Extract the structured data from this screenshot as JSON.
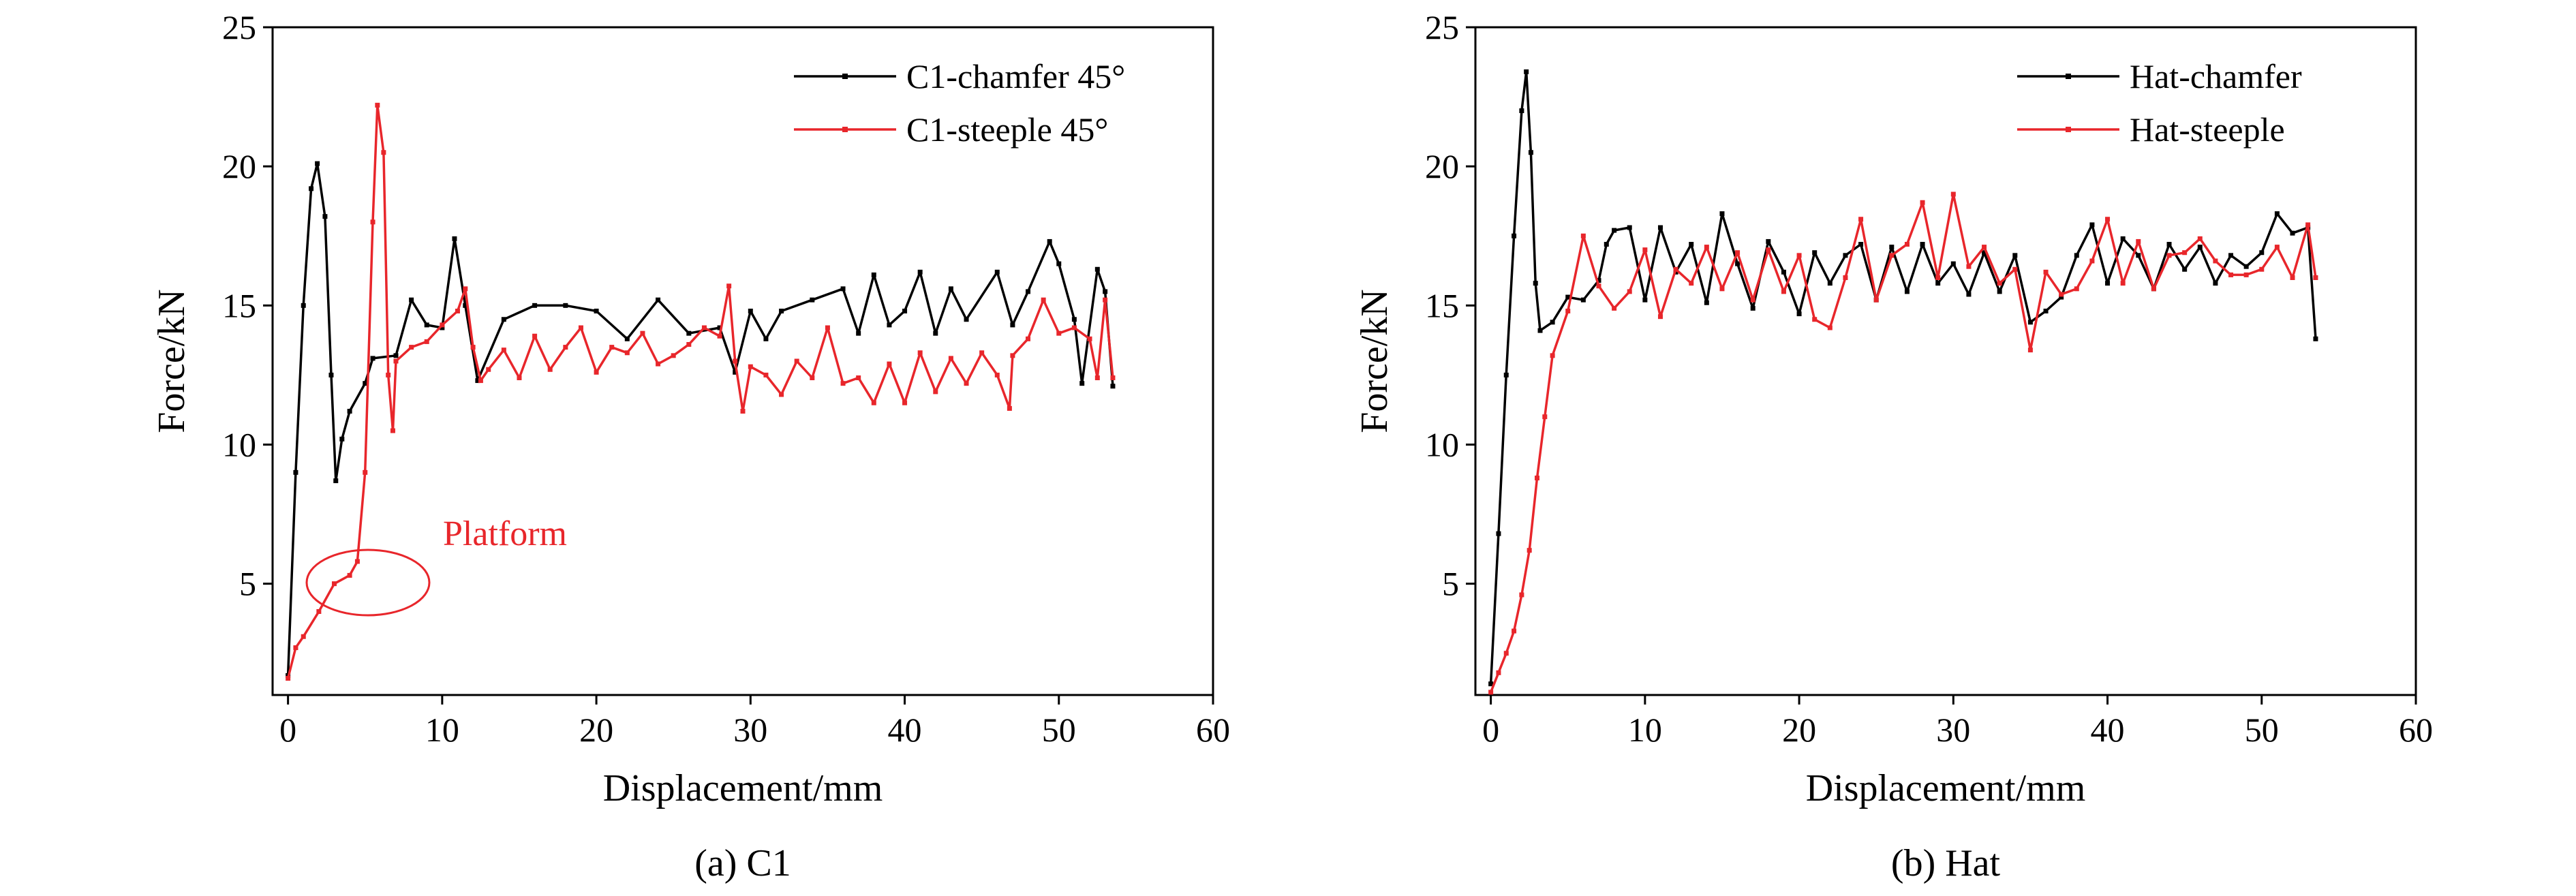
{
  "chart_data": [
    {
      "type": "line",
      "caption": "(a) C1",
      "xlabel": "Displacement/mm",
      "ylabel": "Force/kN",
      "xlim": [
        -1,
        60
      ],
      "ylim": [
        1,
        25
      ],
      "xticks": [
        0,
        10,
        20,
        30,
        40,
        50,
        60
      ],
      "yticks": [
        5,
        10,
        15,
        20,
        25
      ],
      "legend_position": "top-right",
      "annotations": [
        {
          "text": "Platform",
          "color": "#e8262b"
        }
      ],
      "series": [
        {
          "name": "C1-chamfer 45°",
          "color": "#000000",
          "points": [
            [
              0,
              1.7
            ],
            [
              0.5,
              9
            ],
            [
              1,
              15
            ],
            [
              1.5,
              19.2
            ],
            [
              1.9,
              20.1
            ],
            [
              2.4,
              18.2
            ],
            [
              2.8,
              12.5
            ],
            [
              3.1,
              8.7
            ],
            [
              3.5,
              10.2
            ],
            [
              4,
              11.2
            ],
            [
              5,
              12.2
            ],
            [
              5.5,
              13.1
            ],
            [
              7,
              13.2
            ],
            [
              8,
              15.2
            ],
            [
              9,
              14.3
            ],
            [
              10,
              14.2
            ],
            [
              10.8,
              17.4
            ],
            [
              11.5,
              15
            ],
            [
              12.3,
              12.3
            ],
            [
              14,
              14.5
            ],
            [
              16,
              15
            ],
            [
              18,
              15
            ],
            [
              20,
              14.8
            ],
            [
              22,
              13.8
            ],
            [
              24,
              15.2
            ],
            [
              26,
              14
            ],
            [
              28,
              14.2
            ],
            [
              29,
              12.6
            ],
            [
              30,
              14.8
            ],
            [
              31,
              13.8
            ],
            [
              32,
              14.8
            ],
            [
              34,
              15.2
            ],
            [
              36,
              15.6
            ],
            [
              37,
              14
            ],
            [
              38,
              16.1
            ],
            [
              39,
              14.3
            ],
            [
              40,
              14.8
            ],
            [
              41,
              16.2
            ],
            [
              42,
              14
            ],
            [
              43,
              15.6
            ],
            [
              44,
              14.5
            ],
            [
              46,
              16.2
            ],
            [
              47,
              14.3
            ],
            [
              48,
              15.5
            ],
            [
              49.4,
              17.3
            ],
            [
              50,
              16.5
            ],
            [
              51,
              14.5
            ],
            [
              51.5,
              12.2
            ],
            [
              52.5,
              16.3
            ],
            [
              53,
              15.5
            ],
            [
              53.5,
              12.1
            ]
          ]
        },
        {
          "name": "C1-steeple 45°",
          "color": "#e8262b",
          "points": [
            [
              0,
              1.6
            ],
            [
              0.5,
              2.7
            ],
            [
              1,
              3.1
            ],
            [
              2,
              4
            ],
            [
              3,
              5
            ],
            [
              4,
              5.3
            ],
            [
              4.5,
              5.8
            ],
            [
              5,
              9
            ],
            [
              5.5,
              18
            ],
            [
              5.8,
              22.2
            ],
            [
              6.2,
              20.5
            ],
            [
              6.5,
              12.5
            ],
            [
              6.8,
              10.5
            ],
            [
              7,
              13
            ],
            [
              8,
              13.5
            ],
            [
              9,
              13.7
            ],
            [
              10,
              14.3
            ],
            [
              11,
              14.8
            ],
            [
              11.5,
              15.6
            ],
            [
              12,
              13.5
            ],
            [
              12.5,
              12.3
            ],
            [
              13,
              12.7
            ],
            [
              14,
              13.4
            ],
            [
              15,
              12.4
            ],
            [
              16,
              13.9
            ],
            [
              17,
              12.7
            ],
            [
              18,
              13.5
            ],
            [
              19,
              14.2
            ],
            [
              20,
              12.6
            ],
            [
              21,
              13.5
            ],
            [
              22,
              13.3
            ],
            [
              23,
              14
            ],
            [
              24,
              12.9
            ],
            [
              25,
              13.2
            ],
            [
              26,
              13.6
            ],
            [
              27,
              14.2
            ],
            [
              28,
              13.9
            ],
            [
              28.6,
              15.7
            ],
            [
              29,
              13
            ],
            [
              29.5,
              11.2
            ],
            [
              30,
              12.8
            ],
            [
              31,
              12.5
            ],
            [
              32,
              11.8
            ],
            [
              33,
              13
            ],
            [
              34,
              12.4
            ],
            [
              35,
              14.2
            ],
            [
              36,
              12.2
            ],
            [
              37,
              12.4
            ],
            [
              38,
              11.5
            ],
            [
              39,
              12.9
            ],
            [
              40,
              11.5
            ],
            [
              41,
              13.3
            ],
            [
              42,
              11.9
            ],
            [
              43,
              13.1
            ],
            [
              44,
              12.2
            ],
            [
              45,
              13.3
            ],
            [
              46,
              12.5
            ],
            [
              46.8,
              11.3
            ],
            [
              47,
              13.2
            ],
            [
              48,
              13.8
            ],
            [
              49,
              15.2
            ],
            [
              50,
              14
            ],
            [
              51,
              14.2
            ],
            [
              52,
              13.8
            ],
            [
              52.5,
              12.4
            ],
            [
              53,
              15.2
            ],
            [
              53.5,
              12.4
            ]
          ]
        }
      ]
    },
    {
      "type": "line",
      "caption": "(b) Hat",
      "xlabel": "Displacement/mm",
      "ylabel": "Force/kN",
      "xlim": [
        -1,
        60
      ],
      "ylim": [
        1,
        25
      ],
      "xticks": [
        0,
        10,
        20,
        30,
        40,
        50,
        60
      ],
      "yticks": [
        5,
        10,
        15,
        20,
        25
      ],
      "legend_position": "top-right",
      "series": [
        {
          "name": "Hat-chamfer",
          "color": "#000000",
          "points": [
            [
              0,
              1.4
            ],
            [
              0.5,
              6.8
            ],
            [
              1,
              12.5
            ],
            [
              1.5,
              17.5
            ],
            [
              2,
              22
            ],
            [
              2.3,
              23.4
            ],
            [
              2.6,
              20.5
            ],
            [
              2.9,
              15.8
            ],
            [
              3.2,
              14.1
            ],
            [
              4,
              14.4
            ],
            [
              5,
              15.3
            ],
            [
              6,
              15.2
            ],
            [
              7,
              15.9
            ],
            [
              7.5,
              17.2
            ],
            [
              8,
              17.7
            ],
            [
              9,
              17.8
            ],
            [
              10,
              15.2
            ],
            [
              11,
              17.8
            ],
            [
              12,
              16.2
            ],
            [
              13,
              17.2
            ],
            [
              14,
              15.1
            ],
            [
              15,
              18.3
            ],
            [
              16,
              16.5
            ],
            [
              17,
              14.9
            ],
            [
              18,
              17.3
            ],
            [
              19,
              16.2
            ],
            [
              20,
              14.7
            ],
            [
              21,
              16.9
            ],
            [
              22,
              15.8
            ],
            [
              23,
              16.8
            ],
            [
              24,
              17.2
            ],
            [
              25,
              15.2
            ],
            [
              26,
              17.1
            ],
            [
              27,
              15.5
            ],
            [
              28,
              17.2
            ],
            [
              29,
              15.8
            ],
            [
              30,
              16.5
            ],
            [
              31,
              15.4
            ],
            [
              32,
              16.9
            ],
            [
              33,
              15.5
            ],
            [
              34,
              16.8
            ],
            [
              35,
              14.4
            ],
            [
              36,
              14.8
            ],
            [
              37,
              15.3
            ],
            [
              38,
              16.8
            ],
            [
              39,
              17.9
            ],
            [
              40,
              15.8
            ],
            [
              41,
              17.4
            ],
            [
              42,
              16.8
            ],
            [
              43,
              15.6
            ],
            [
              44,
              17.2
            ],
            [
              45,
              16.3
            ],
            [
              46,
              17.1
            ],
            [
              47,
              15.8
            ],
            [
              48,
              16.8
            ],
            [
              49,
              16.4
            ],
            [
              50,
              16.9
            ],
            [
              51,
              18.3
            ],
            [
              52,
              17.6
            ],
            [
              53,
              17.8
            ],
            [
              53.5,
              13.8
            ]
          ]
        },
        {
          "name": "Hat-steeple",
          "color": "#e8262b",
          "points": [
            [
              0,
              1.1
            ],
            [
              0.5,
              1.8
            ],
            [
              1,
              2.5
            ],
            [
              1.5,
              3.3
            ],
            [
              2,
              4.6
            ],
            [
              2.5,
              6.2
            ],
            [
              3,
              8.8
            ],
            [
              3.5,
              11
            ],
            [
              4,
              13.2
            ],
            [
              5,
              14.8
            ],
            [
              6,
              17.5
            ],
            [
              7,
              15.7
            ],
            [
              8,
              14.9
            ],
            [
              9,
              15.5
            ],
            [
              10,
              17
            ],
            [
              11,
              14.6
            ],
            [
              12,
              16.3
            ],
            [
              13,
              15.8
            ],
            [
              14,
              17.1
            ],
            [
              15,
              15.6
            ],
            [
              16,
              16.9
            ],
            [
              17,
              15.2
            ],
            [
              18,
              17
            ],
            [
              19,
              15.5
            ],
            [
              20,
              16.8
            ],
            [
              21,
              14.5
            ],
            [
              22,
              14.2
            ],
            [
              23,
              16
            ],
            [
              24,
              18.1
            ],
            [
              25,
              15.2
            ],
            [
              26,
              16.8
            ],
            [
              27,
              17.2
            ],
            [
              28,
              18.7
            ],
            [
              29,
              16
            ],
            [
              30,
              19
            ],
            [
              31,
              16.4
            ],
            [
              32,
              17.1
            ],
            [
              33,
              15.8
            ],
            [
              34,
              16.3
            ],
            [
              35,
              13.4
            ],
            [
              36,
              16.2
            ],
            [
              37,
              15.4
            ],
            [
              38,
              15.6
            ],
            [
              39,
              16.6
            ],
            [
              40,
              18.1
            ],
            [
              41,
              15.8
            ],
            [
              42,
              17.3
            ],
            [
              43,
              15.6
            ],
            [
              44,
              16.8
            ],
            [
              45,
              16.9
            ],
            [
              46,
              17.4
            ],
            [
              47,
              16.6
            ],
            [
              48,
              16.1
            ],
            [
              49,
              16.1
            ],
            [
              50,
              16.3
            ],
            [
              51,
              17.1
            ],
            [
              52,
              16
            ],
            [
              53,
              17.9
            ],
            [
              53.5,
              16
            ]
          ]
        }
      ]
    }
  ]
}
